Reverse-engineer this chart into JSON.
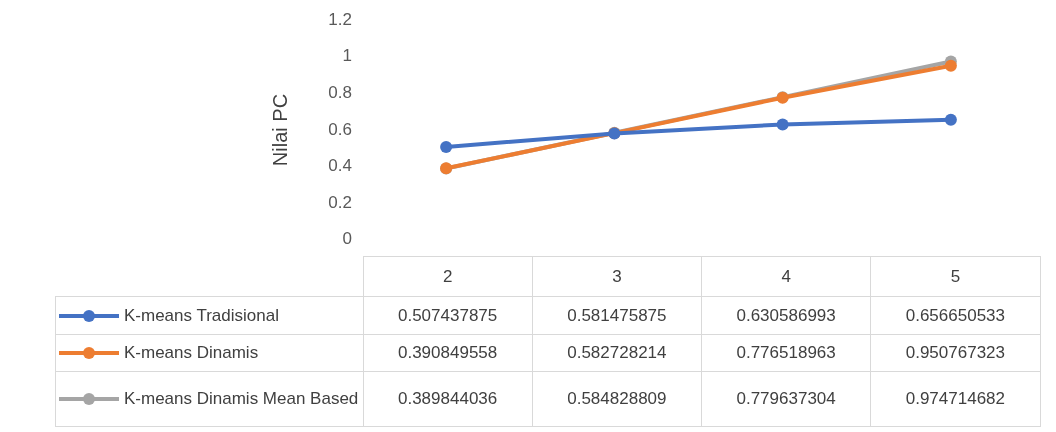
{
  "chart_data": {
    "type": "line",
    "ylabel": "Nilai PC",
    "categories": [
      "2",
      "3",
      "4",
      "5"
    ],
    "series": [
      {
        "name": "K-means Tradisional",
        "color": "#4472c4",
        "values": [
          0.507437875,
          0.581475875,
          0.630586993,
          0.656650533
        ]
      },
      {
        "name": "K-means Dinamis",
        "color": "#ed7d31",
        "values": [
          0.390849558,
          0.582728214,
          0.776518963,
          0.950767323
        ]
      },
      {
        "name": "K-means Dinamis Mean Based",
        "color": "#a5a5a5",
        "values": [
          0.389844036,
          0.584828809,
          0.779637304,
          0.974714682
        ]
      }
    ],
    "ylim": [
      0,
      1.2
    ],
    "yticks": [
      0,
      0.2,
      0.4,
      0.6,
      0.8,
      1,
      1.2
    ],
    "grid": false,
    "legend": "bottom left",
    "marker": "circle",
    "data_labels": true
  }
}
